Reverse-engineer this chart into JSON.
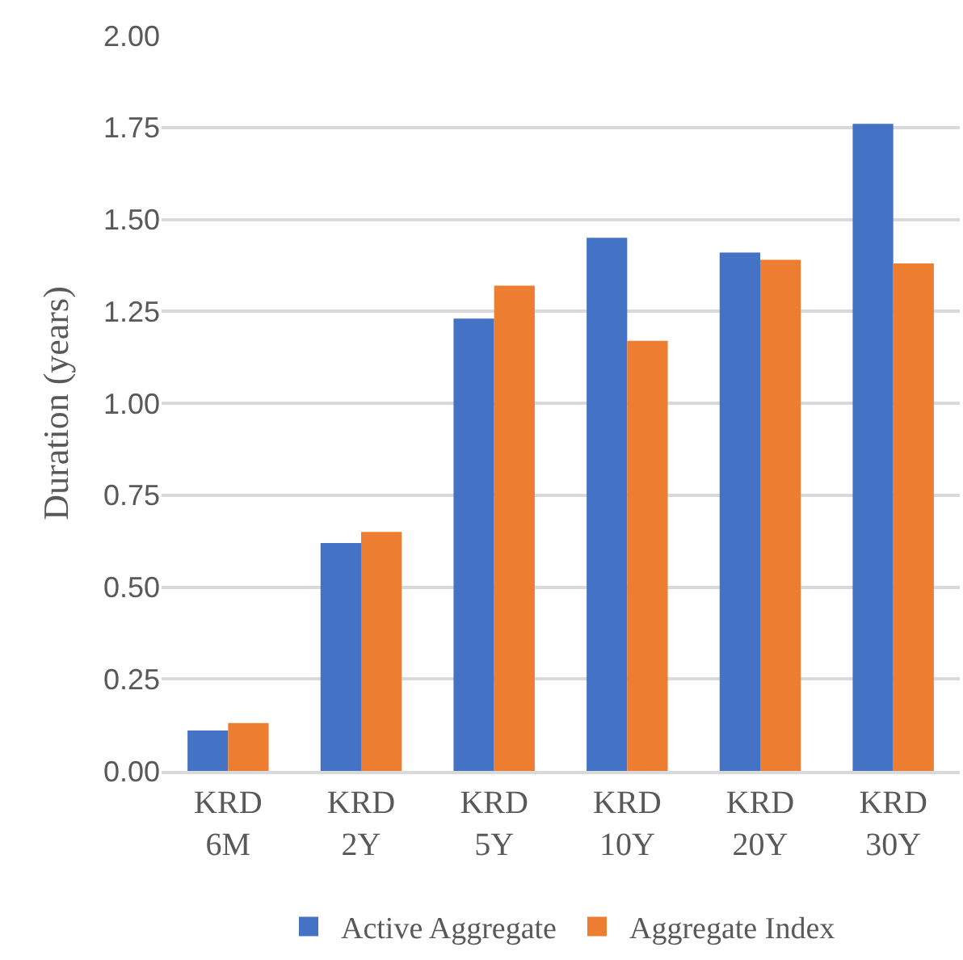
{
  "chart_data": {
    "type": "bar",
    "ylabel": "Duration (years)",
    "categories": [
      "KRD 6M",
      "KRD 2Y",
      "KRD 5Y",
      "KRD 10Y",
      "KRD 20Y",
      "KRD 30Y"
    ],
    "series": [
      {
        "name": "Active Aggregate",
        "color": "#4472c4",
        "values": [
          0.11,
          0.62,
          1.23,
          1.45,
          1.41,
          1.76
        ]
      },
      {
        "name": "Aggregate Index",
        "color": "#ed7d31",
        "values": [
          0.13,
          0.65,
          1.32,
          1.17,
          1.39,
          1.38
        ]
      }
    ],
    "ylim": [
      0,
      2
    ],
    "yticks": [
      {
        "value": 0,
        "label": "0.00"
      },
      {
        "value": 0.25,
        "label": "0.25"
      },
      {
        "value": 0.5,
        "label": "0.50"
      },
      {
        "value": 0.75,
        "label": "0.75"
      },
      {
        "value": 1,
        "label": "1.00"
      },
      {
        "value": 1.25,
        "label": "1.25"
      },
      {
        "value": 1.5,
        "label": "1.50"
      },
      {
        "value": 1.75,
        "label": "1.75"
      },
      {
        "value": 2,
        "label": "2.00"
      }
    ],
    "grid": "y",
    "legend": "bottom"
  }
}
